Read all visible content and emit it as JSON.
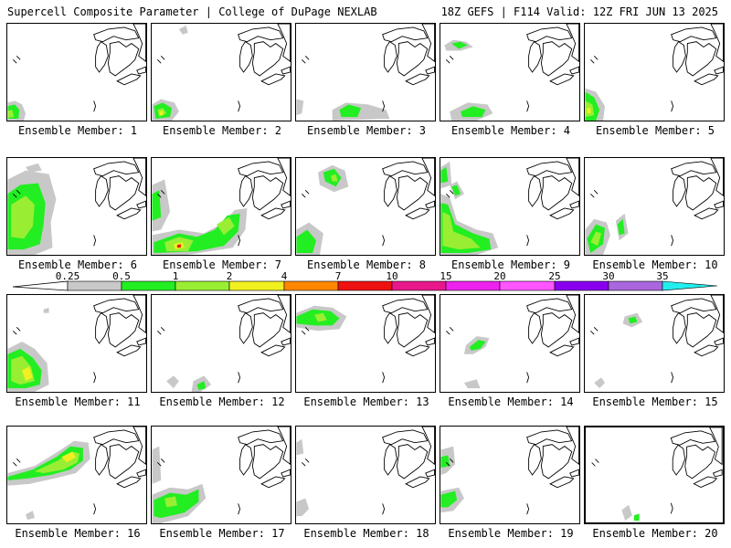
{
  "header": {
    "title_left": "Supercell Composite Parameter | College of DuPage NEXLAB",
    "title_right": "18Z GEFS | F114 Valid: 12Z FRI JUN 13 2025"
  },
  "colors": {
    "gray": "#c8c8c8",
    "green": "#22ee22",
    "lightgreen": "#99ee33",
    "yellow": "#f0f020",
    "orange": "#ff8800",
    "red": "#ee1111",
    "darkpink": "#e8188a",
    "pink": "#ee22ee",
    "magenta": "#ff55ff",
    "purple": "#8800ee",
    "lavender": "#aa66dd",
    "cyan": "#22eeee"
  },
  "colorbar": {
    "labels": [
      "0.25",
      "0.5",
      "1",
      "2",
      "4",
      "7",
      "10",
      "15",
      "20",
      "25",
      "30",
      "35"
    ],
    "segment_colors": [
      "#c8c8c8",
      "#22ee22",
      "#99ee33",
      "#f0f020",
      "#ff8800",
      "#ee1111",
      "#e8188a",
      "#ee22ee",
      "#aa33ee",
      "#8800ee",
      "#aa66dd",
      "#22eeee"
    ]
  },
  "members": [
    {
      "label": "Ensemble Member: 1"
    },
    {
      "label": "Ensemble Member: 2"
    },
    {
      "label": "Ensemble Member: 3"
    },
    {
      "label": "Ensemble Member: 4"
    },
    {
      "label": "Ensemble Member: 5"
    },
    {
      "label": "Ensemble Member: 6"
    },
    {
      "label": "Ensemble Member: 7"
    },
    {
      "label": "Ensemble Member: 8"
    },
    {
      "label": "Ensemble Member: 9"
    },
    {
      "label": "Ensemble Member: 10"
    },
    {
      "label": "Ensemble Member: 11"
    },
    {
      "label": "Ensemble Member: 12"
    },
    {
      "label": "Ensemble Member: 13"
    },
    {
      "label": "Ensemble Member: 14"
    },
    {
      "label": "Ensemble Member: 15"
    },
    {
      "label": "Ensemble Member: 16"
    },
    {
      "label": "Ensemble Member: 17"
    },
    {
      "label": "Ensemble Member: 18"
    },
    {
      "label": "Ensemble Member: 19"
    },
    {
      "label": "Ensemble Member: 20"
    }
  ]
}
